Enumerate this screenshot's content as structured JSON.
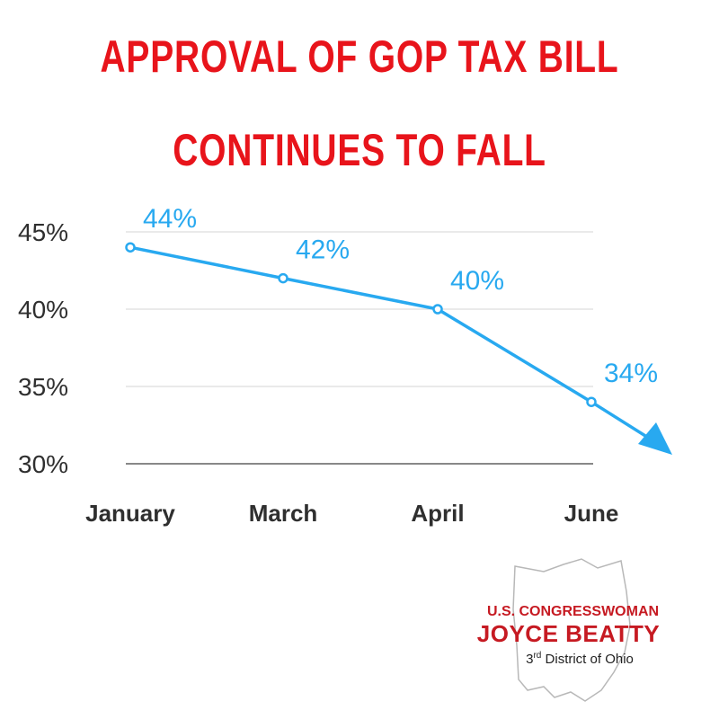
{
  "title": {
    "line1": "APPROVAL OF GOP TAX BILL",
    "line2": "CONTINUES TO FALL"
  },
  "colors": {
    "title": "#e8141b",
    "series": "#28a9f0",
    "grid": "#dddddd",
    "axis": "#888888",
    "logo": "#c61a22"
  },
  "chart_data": {
    "type": "line",
    "title": "APPROVAL OF GOP TAX BILL CONTINUES TO FALL",
    "categories": [
      "January",
      "March",
      "April",
      "June"
    ],
    "values": [
      44,
      42,
      40,
      34
    ],
    "data_labels": [
      "44%",
      "42%",
      "40%",
      "34%"
    ],
    "y_ticks": [
      30,
      35,
      40,
      45
    ],
    "y_tick_labels": [
      "30%",
      "35%",
      "40%",
      "45%"
    ],
    "ylim": [
      30,
      45
    ],
    "xlabel": "",
    "ylabel": "",
    "grid": true,
    "trend_arrow": "downward"
  },
  "logo": {
    "line1": "U.S. CONGRESSWOMAN",
    "line2": "JOYCE BEATTY",
    "line3_num": "3",
    "line3_sup": "rd",
    "line3_rest": " District of Ohio",
    "icon": "ohio-state-outline-icon"
  }
}
